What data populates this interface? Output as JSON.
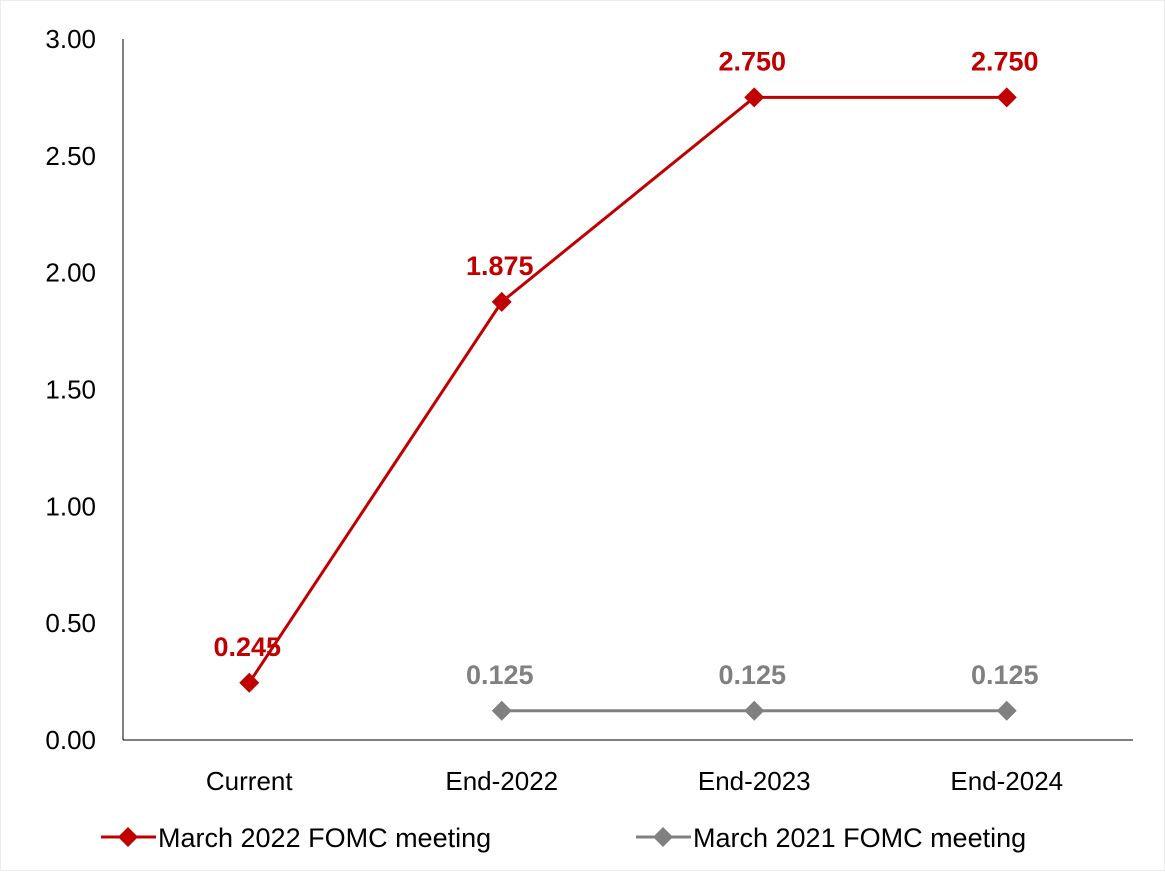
{
  "chart_data": {
    "type": "line",
    "categories": [
      "Current",
      "End-2022",
      "End-2023",
      "End-2024"
    ],
    "ylim": [
      0,
      3
    ],
    "yticks": [
      "0.00",
      "0.50",
      "1.00",
      "1.50",
      "2.00",
      "2.50",
      "3.00"
    ],
    "grid": false,
    "legend_position": "bottom",
    "series": [
      {
        "name": "March 2022 FOMC meeting",
        "values": [
          0.245,
          1.875,
          2.75,
          2.75
        ],
        "labels": [
          "0.245",
          "1.875",
          "2.750",
          "2.750"
        ],
        "color": "#c00000",
        "marker": "diamond"
      },
      {
        "name": "March 2021 FOMC meeting",
        "values": [
          null,
          0.125,
          0.125,
          0.125
        ],
        "labels": [
          null,
          "0.125",
          "0.125",
          "0.125"
        ],
        "color": "#808080",
        "marker": "diamond"
      }
    ]
  }
}
